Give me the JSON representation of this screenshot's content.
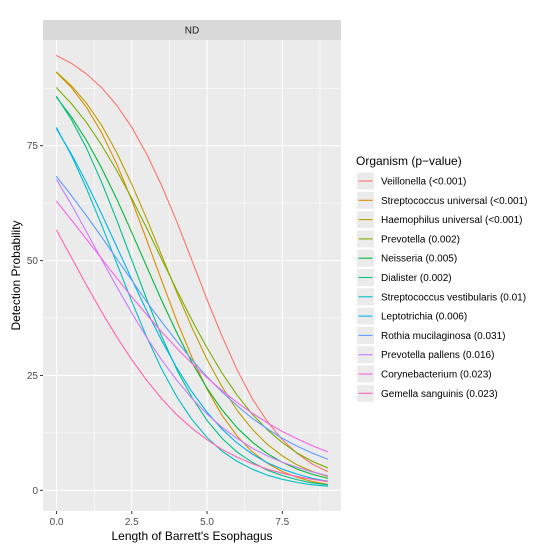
{
  "chart_data": {
    "type": "line",
    "facet_label": "ND",
    "xlabel": "Length of Barrett's Esophagus",
    "ylabel": "Detection Probability",
    "xlim": [
      -0.45,
      9.45
    ],
    "ylim": [
      -4.5,
      98
    ],
    "x_ticks": [
      0,
      2.5,
      5,
      7.5
    ],
    "x_tick_labels": [
      "0.0",
      "2.5",
      "5.0",
      "7.5"
    ],
    "y_ticks": [
      0,
      25,
      50,
      75
    ],
    "y_tick_labels": [
      "0",
      "25",
      "50",
      "75"
    ],
    "grid": true,
    "legend": {
      "title": "Organism (p−value)",
      "placement": "right"
    },
    "x": [
      0,
      0.5,
      1,
      1.5,
      2,
      2.5,
      3,
      3.5,
      4,
      4.5,
      5,
      5.5,
      6,
      6.5,
      7,
      7.5,
      8,
      8.5,
      9
    ],
    "series": [
      {
        "name": "Veillonella (<0.001)",
        "color": "#F8766D",
        "values": [
          94.6,
          92.9,
          90.6,
          87.6,
          83.8,
          79.0,
          73.1,
          66.2,
          58.4,
          50.0,
          41.5,
          33.5,
          26.2,
          20.0,
          15.0,
          11.0,
          8.0,
          5.7,
          4.1
        ]
      },
      {
        "name": "Streptococcus universal (<0.001)",
        "color": "#DE8C00",
        "values": [
          90.9,
          87.6,
          83.3,
          77.8,
          71.0,
          63.1,
          54.4,
          45.5,
          36.8,
          28.9,
          22.0,
          16.3,
          11.8,
          8.4,
          5.9,
          4.1,
          2.8,
          1.9,
          1.3
        ]
      },
      {
        "name": "Haemophilus universal (<0.001)",
        "color": "#B79F00",
        "values": [
          91.0,
          88.0,
          84.2,
          79.4,
          73.5,
          66.6,
          59.0,
          51.0,
          43.0,
          35.4,
          28.5,
          22.5,
          17.4,
          13.3,
          10.0,
          7.5,
          5.5,
          4.1,
          3.0
        ]
      },
      {
        "name": "Prevotella (0.002)",
        "color": "#7CAE00",
        "values": [
          87.6,
          84.1,
          80.0,
          75.1,
          69.6,
          63.5,
          57.0,
          50.2,
          43.5,
          37.0,
          31.0,
          25.5,
          20.7,
          16.6,
          13.2,
          10.4,
          8.1,
          6.3,
          4.9
        ]
      },
      {
        "name": "Neisseria (0.005)",
        "color": "#00BA38",
        "values": [
          85.5,
          81.2,
          76.1,
          70.1,
          63.4,
          56.1,
          48.6,
          41.2,
          34.2,
          27.8,
          22.2,
          17.5,
          13.6,
          10.5,
          8.0,
          6.1,
          4.6,
          3.5,
          2.6
        ]
      },
      {
        "name": "Dialister (0.002)",
        "color": "#00C08B",
        "values": [
          85.7,
          80.6,
          74.4,
          67.0,
          58.8,
          50.1,
          41.5,
          33.4,
          26.2,
          20.2,
          15.2,
          11.3,
          8.3,
          6.1,
          4.4,
          3.2,
          2.3,
          1.6,
          1.2
        ]
      },
      {
        "name": "Streptococcus vestibularis (0.01)",
        "color": "#00BFC4",
        "values": [
          78.9,
          72.8,
          65.6,
          57.7,
          49.4,
          41.1,
          33.3,
          26.3,
          20.3,
          15.4,
          11.5,
          8.5,
          6.3,
          4.6,
          3.3,
          2.4,
          1.7,
          1.2,
          0.9
        ]
      },
      {
        "name": "Leptotrichia (0.006)",
        "color": "#00B4F0",
        "values": [
          78.6,
          73.1,
          66.9,
          60.1,
          53.0,
          45.9,
          39.0,
          32.5,
          26.6,
          21.4,
          17.0,
          13.3,
          10.3,
          7.9,
          6.0,
          4.6,
          3.5,
          2.6,
          2.0
        ]
      },
      {
        "name": "Rothia mucilaginosa (0.031)",
        "color": "#619CFF",
        "values": [
          68.3,
          64.1,
          59.7,
          55.1,
          50.4,
          45.7,
          41.0,
          36.6,
          32.4,
          28.4,
          24.7,
          21.4,
          18.4,
          15.7,
          13.4,
          11.3,
          9.6,
          8.1,
          6.8
        ]
      },
      {
        "name": "Prevotella pallens (0.016)",
        "color": "#C77CFF",
        "values": [
          67.6,
          62.1,
          56.2,
          50.2,
          44.3,
          38.6,
          33.2,
          28.3,
          23.9,
          20.0,
          16.6,
          13.7,
          11.3,
          9.2,
          7.5,
          6.1,
          5.0,
          4.0,
          3.2
        ]
      },
      {
        "name": "Corynebacterium (0.023)",
        "color": "#F564E3",
        "values": [
          62.9,
          58.8,
          54.6,
          50.4,
          46.2,
          42.1,
          38.2,
          34.4,
          30.9,
          27.6,
          24.5,
          21.7,
          19.1,
          16.8,
          14.7,
          12.8,
          11.2,
          9.7,
          8.4
        ]
      },
      {
        "name": "Gemella sanguinis (0.023)",
        "color": "#FF64B0",
        "values": [
          56.6,
          50.6,
          44.6,
          38.8,
          33.4,
          28.4,
          23.9,
          19.9,
          16.4,
          13.5,
          11.0,
          8.9,
          7.2,
          5.8,
          4.6,
          3.7,
          3.0,
          2.4,
          1.9
        ]
      }
    ]
  }
}
